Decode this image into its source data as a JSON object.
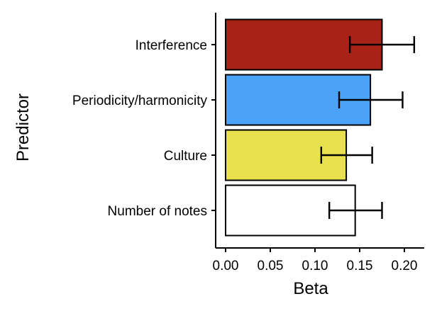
{
  "chart_data": {
    "type": "bar",
    "orientation": "horizontal",
    "xlabel": "Beta",
    "ylabel": "Predictor",
    "xlim": [
      -0.01,
      0.22
    ],
    "xticks": [
      "0.00",
      "0.05",
      "0.10",
      "0.15",
      "0.20"
    ],
    "xtick_values": [
      0.0,
      0.05,
      0.1,
      0.15,
      0.2
    ],
    "grid": false,
    "categories": [
      "Interference",
      "Periodicity/harmonicity",
      "Culture",
      "Number of notes"
    ],
    "values": [
      0.175,
      0.162,
      0.135,
      0.145
    ],
    "error_low": [
      0.139,
      0.127,
      0.107,
      0.116
    ],
    "error_high": [
      0.211,
      0.198,
      0.164,
      0.175
    ],
    "colors": [
      "#A92217",
      "#4BA3F8",
      "#E8E04C",
      "#FFFFFF"
    ]
  }
}
